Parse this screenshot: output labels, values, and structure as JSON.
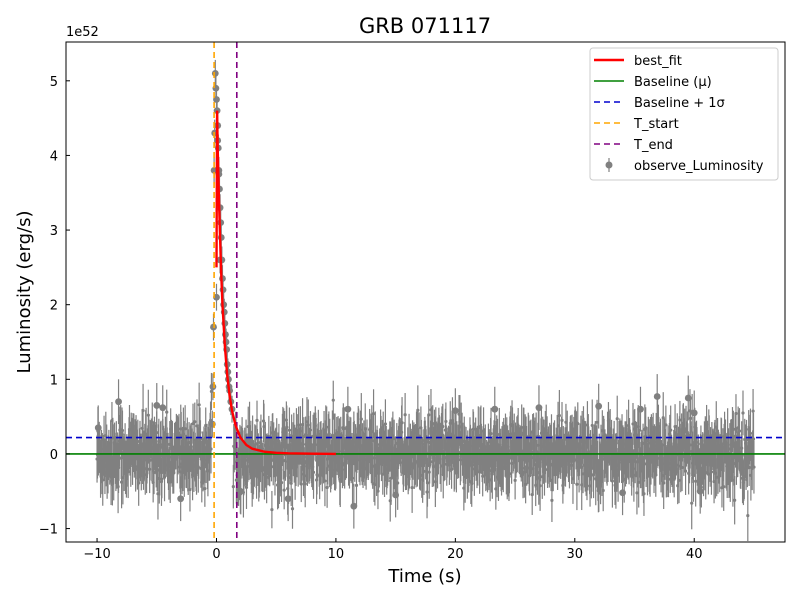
{
  "chart_data": {
    "type": "scatter",
    "title": "GRB 071117",
    "xlabel": "Time (s)",
    "ylabel": "Luminosity (erg/s)",
    "y_offset_label": "1e52",
    "y_scale_factor": 1e+52,
    "xlim": [
      -12.6,
      47.6
    ],
    "ylim": [
      -1.18,
      5.52
    ],
    "xticks": [
      -10,
      0,
      10,
      20,
      30,
      40
    ],
    "xtick_labels": [
      "−10",
      "0",
      "10",
      "20",
      "30",
      "40"
    ],
    "yticks": [
      -1,
      0,
      1,
      2,
      3,
      4,
      5
    ],
    "ytick_labels": [
      "−1",
      "0",
      "1",
      "2",
      "3",
      "4",
      "5"
    ],
    "grid": false,
    "legend_position": "top-right",
    "colors": {
      "best_fit": "#ff0000",
      "baseline": "#008000",
      "baseline_sigma": "#0000cd",
      "t_start": "#ffa500",
      "t_end": "#800080",
      "observed": "#808080"
    },
    "series": [
      {
        "name": "best_fit",
        "style": "line",
        "x": [
          0.0,
          0.05,
          0.1,
          0.2,
          0.3,
          0.4,
          0.5,
          0.7,
          0.9,
          1.1,
          1.3,
          1.6,
          2.0,
          2.5,
          3.0,
          4.0,
          5.0,
          6.0,
          8.0,
          10.0
        ],
        "y": [
          2.5,
          4.6,
          4.1,
          3.45,
          2.9,
          2.4,
          2.0,
          1.45,
          1.05,
          0.78,
          0.58,
          0.38,
          0.22,
          0.12,
          0.07,
          0.03,
          0.015,
          0.008,
          0.003,
          0.0
        ]
      },
      {
        "name": "Baseline (μ)",
        "style": "hline",
        "y": 0.0
      },
      {
        "name": "Baseline + 1σ",
        "style": "hline-dashed",
        "y": 0.22
      },
      {
        "name": "T_start",
        "style": "vline-dashed",
        "x": -0.2
      },
      {
        "name": "T_end",
        "style": "vline-dashed",
        "x": 1.7
      },
      {
        "name": "observe_Luminosity",
        "style": "errorbar",
        "x_range": [
          -10,
          45
        ],
        "noise_level": 0.22,
        "errorbar_size": 0.3,
        "pulse_points": [
          [
            -0.1,
            5.1
          ],
          [
            -0.05,
            4.9
          ],
          [
            0.0,
            4.75
          ],
          [
            0.05,
            4.6
          ],
          [
            0.1,
            4.4
          ],
          [
            0.15,
            4.1
          ],
          [
            0.2,
            3.8
          ],
          [
            0.25,
            3.55
          ],
          [
            0.3,
            3.3
          ],
          [
            0.35,
            3.1
          ],
          [
            0.4,
            2.9
          ],
          [
            0.45,
            2.6
          ],
          [
            0.5,
            2.35
          ],
          [
            0.55,
            2.2
          ],
          [
            0.6,
            2.0
          ],
          [
            0.65,
            1.9
          ],
          [
            0.7,
            1.75
          ],
          [
            0.75,
            1.6
          ],
          [
            0.8,
            1.5
          ],
          [
            0.85,
            1.4
          ],
          [
            0.9,
            1.2
          ],
          [
            0.95,
            1.1
          ],
          [
            1.0,
            1.0
          ],
          [
            1.05,
            0.9
          ],
          [
            1.1,
            0.85
          ],
          [
            1.2,
            0.7
          ],
          [
            1.3,
            0.6
          ],
          [
            -0.15,
            4.3
          ],
          [
            -0.2,
            3.8
          ],
          [
            -0.25,
            1.7
          ],
          [
            -0.3,
            0.9
          ],
          [
            -0.35,
            0.4
          ],
          [
            0.0,
            2.1
          ],
          [
            0.1,
            4.2
          ],
          [
            0.2,
            3.75
          ],
          [
            0.3,
            2.6
          ]
        ],
        "outliers": [
          [
            -9.9,
            0.35
          ],
          [
            -8.2,
            0.7
          ],
          [
            -5.0,
            0.65
          ],
          [
            -4.5,
            0.62
          ],
          [
            -3.0,
            -0.6
          ],
          [
            11.0,
            0.6
          ],
          [
            11.5,
            -0.7
          ],
          [
            20.0,
            0.58
          ],
          [
            23.3,
            0.6
          ],
          [
            27.0,
            0.62
          ],
          [
            32.0,
            0.64
          ],
          [
            35.5,
            0.6
          ],
          [
            36.9,
            0.77
          ],
          [
            39.5,
            0.75
          ],
          [
            40.0,
            0.55
          ],
          [
            2.0,
            -0.5
          ],
          [
            6.0,
            -0.6
          ],
          [
            15.0,
            -0.55
          ],
          [
            34.0,
            -0.52
          ],
          [
            40.5,
            -0.5
          ]
        ]
      }
    ]
  }
}
